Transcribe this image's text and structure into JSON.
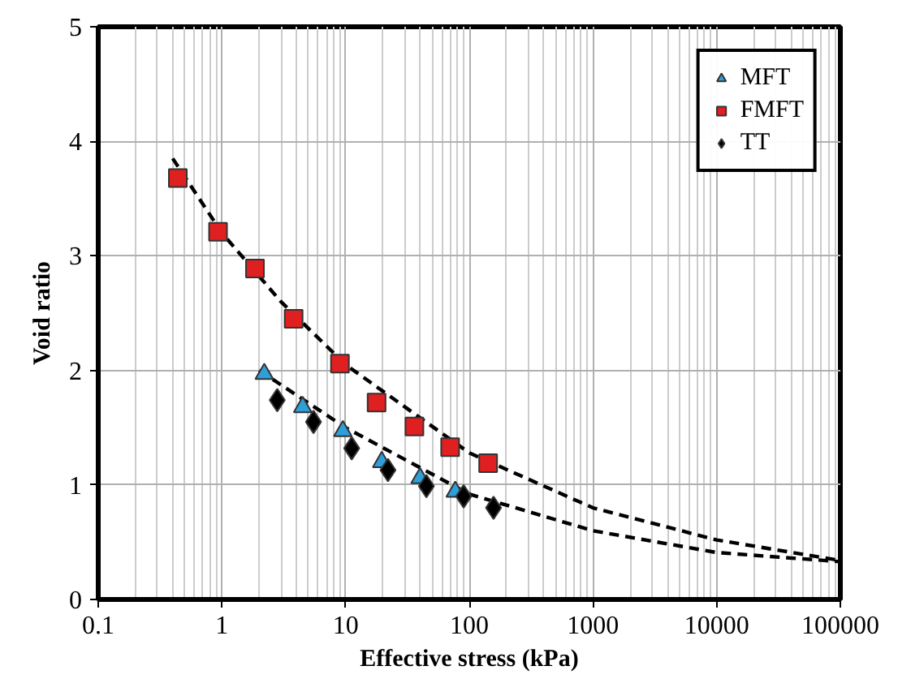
{
  "chart_data": {
    "type": "scatter",
    "xlabel": "Effective stress (kPa)",
    "ylabel": "Void ratio",
    "log": "x",
    "xlim": [
      0.1,
      100000
    ],
    "xticks": [
      0.1,
      1,
      10,
      100,
      1000,
      10000,
      100000
    ],
    "ylim": [
      0,
      5
    ],
    "yticks": [
      0,
      1,
      2,
      3,
      4,
      5
    ],
    "grid": true,
    "legend": "top right",
    "series": [
      {
        "name": "MFT",
        "marker": "triangle",
        "color": "#2e9fd8",
        "x": [
          2.2,
          4.5,
          9.5,
          19.6,
          40,
          77
        ],
        "values": [
          1.97,
          1.68,
          1.47,
          1.2,
          1.06,
          0.94
        ]
      },
      {
        "name": "FMFT",
        "marker": "square",
        "color": "#e02020",
        "x": [
          0.44,
          0.93,
          1.85,
          3.8,
          9,
          17.8,
          36,
          70,
          142
        ],
        "values": [
          3.68,
          3.21,
          2.89,
          2.45,
          2.06,
          1.72,
          1.51,
          1.33,
          1.19
        ]
      },
      {
        "name": "TT",
        "marker": "diamond",
        "color": "#000000",
        "x": [
          2.8,
          5.5,
          11.2,
          22,
          45,
          90,
          157
        ],
        "values": [
          1.74,
          1.55,
          1.32,
          1.13,
          0.99,
          0.9,
          0.8
        ]
      },
      {
        "type": "line",
        "line_style": "dashed",
        "color": "#000000",
        "x": [
          0.4,
          1,
          3,
          10,
          100,
          1000,
          10000,
          100000
        ],
        "values": [
          3.85,
          3.2,
          2.6,
          2.05,
          1.28,
          0.8,
          0.52,
          0.34
        ]
      },
      {
        "type": "line",
        "line_style": "dashed",
        "color": "#000000",
        "x": [
          2,
          10,
          100,
          1000,
          10000,
          100000
        ],
        "values": [
          2.0,
          1.5,
          0.92,
          0.6,
          0.41,
          0.33
        ]
      }
    ]
  }
}
